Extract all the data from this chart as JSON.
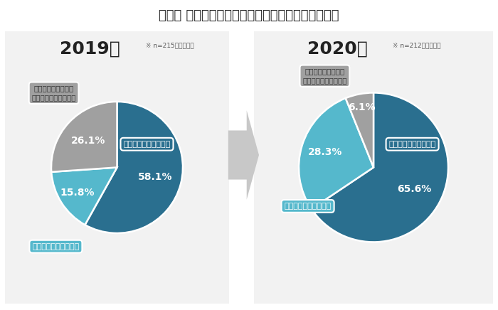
{
  "title": "【図】 個人情報保護の規制強化に対する関心の有無",
  "title_fontsize": 13,
  "year2019": {
    "label": "2019年",
    "sublabel": "※ n=215／単一回答",
    "slices": [
      58.1,
      15.8,
      26.1
    ],
    "colors": [
      "#2a6f8f",
      "#55b8cc",
      "#a0a0a0"
    ],
    "pct_labels": [
      "58.1%",
      "15.8%",
      "26.1%"
    ],
    "slice_labels": [
      "強く関心を持っている",
      "少し関心を持っている",
      "このテーマについて\n知らない・関心が無い"
    ]
  },
  "year2020": {
    "label": "2020年",
    "sublabel": "※ n=212／単一回答",
    "slices": [
      65.6,
      28.3,
      6.1
    ],
    "colors": [
      "#2a6f8f",
      "#55b8cc",
      "#a0a0a0"
    ],
    "pct_labels": [
      "65.6%",
      "28.3%",
      "6.1%"
    ],
    "slice_labels": [
      "強く関心を持っている",
      "少し関心を持っている",
      "このテーマについて\n知らない・関心が無い"
    ]
  },
  "bg_color": "#ffffff",
  "panel_bg": "#f2f2f2"
}
